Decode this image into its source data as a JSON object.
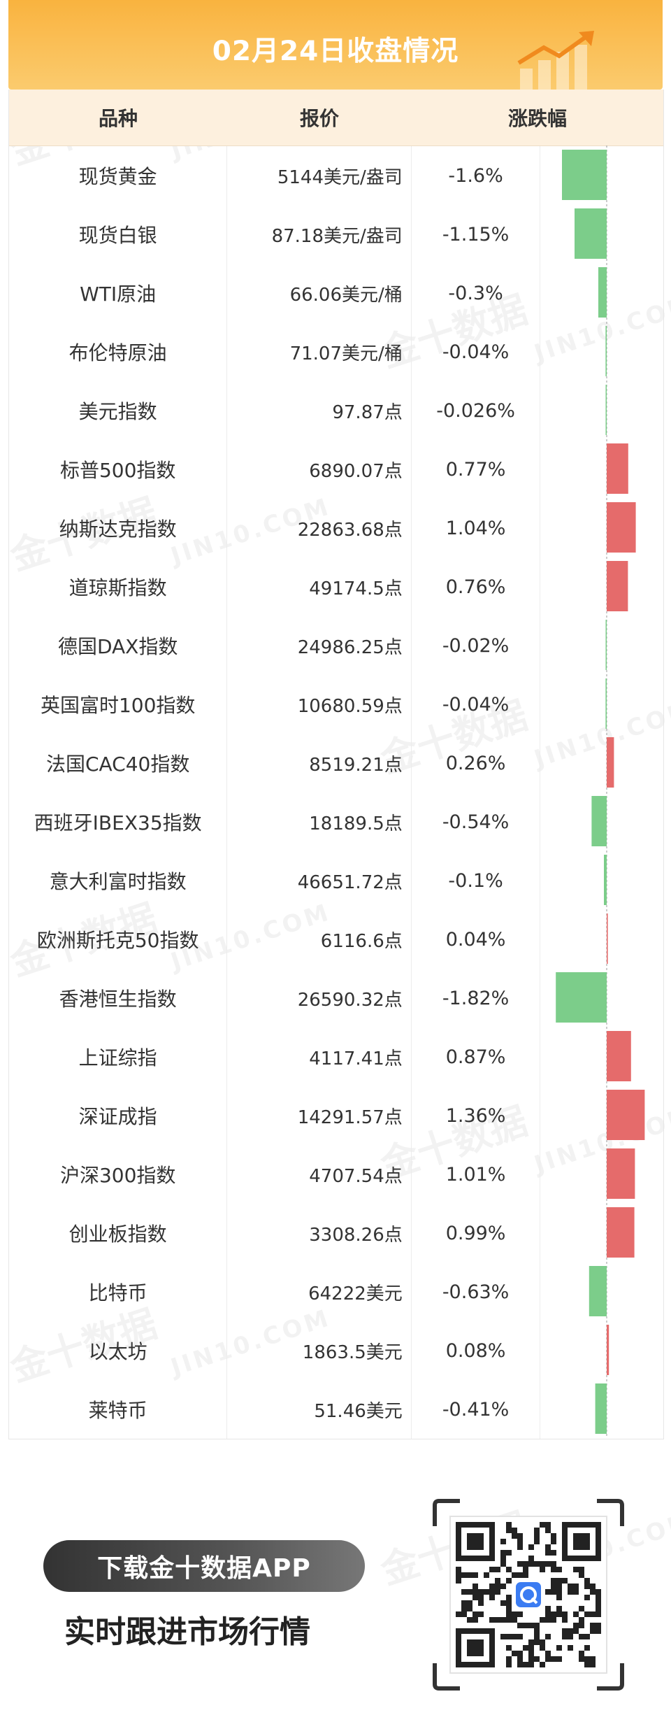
{
  "header": {
    "title": "02月24日收盘情况"
  },
  "watermark": {
    "cn": "金十数据",
    "en": "JIN10.COM"
  },
  "table": {
    "columns": [
      "品种",
      "报价",
      "涨跌幅"
    ],
    "rows": [
      {
        "name": "现货黄金",
        "price": "5144美元/盎司",
        "change": "-1.6%"
      },
      {
        "name": "现货白银",
        "price": "87.18美元/盎司",
        "change": "-1.15%"
      },
      {
        "name": "WTI原油",
        "price": "66.06美元/桶",
        "change": "-0.3%"
      },
      {
        "name": "布伦特原油",
        "price": "71.07美元/桶",
        "change": "-0.04%"
      },
      {
        "name": "美元指数",
        "price": "97.87点",
        "change": "-0.026%"
      },
      {
        "name": "标普500指数",
        "price": "6890.07点",
        "change": "0.77%"
      },
      {
        "name": "纳斯达克指数",
        "price": "22863.68点",
        "change": "1.04%"
      },
      {
        "name": "道琼斯指数",
        "price": "49174.5点",
        "change": "0.76%"
      },
      {
        "name": "德国DAX指数",
        "price": "24986.25点",
        "change": "-0.02%"
      },
      {
        "name": "英国富时100指数",
        "price": "10680.59点",
        "change": "-0.04%"
      },
      {
        "name": "法国CAC40指数",
        "price": "8519.21点",
        "change": "0.26%"
      },
      {
        "name": "西班牙IBEX35指数",
        "price": "18189.5点",
        "change": "-0.54%"
      },
      {
        "name": "意大利富时指数",
        "price": "46651.72点",
        "change": "-0.1%"
      },
      {
        "name": "欧洲斯托克50指数",
        "price": "6116.6点",
        "change": "0.04%"
      },
      {
        "name": "香港恒生指数",
        "price": "26590.32点",
        "change": "-1.82%"
      },
      {
        "name": "上证综指",
        "price": "4117.41点",
        "change": "0.87%"
      },
      {
        "name": "深证成指",
        "price": "14291.57点",
        "change": "1.36%"
      },
      {
        "name": "沪深300指数",
        "price": "4707.54点",
        "change": "1.01%"
      },
      {
        "name": "创业板指数",
        "price": "3308.26点",
        "change": "0.99%"
      },
      {
        "name": "比特币",
        "price": "64222美元",
        "change": "-0.63%"
      },
      {
        "name": "以太坊",
        "price": "1863.5美元",
        "change": "0.08%"
      },
      {
        "name": "莱特币",
        "price": "51.46美元",
        "change": "-0.41%"
      }
    ]
  },
  "chart_data": {
    "type": "bar",
    "categories": [
      "现货黄金",
      "现货白银",
      "WTI原油",
      "布伦特原油",
      "美元指数",
      "标普500指数",
      "纳斯达克指数",
      "道琼斯指数",
      "德国DAX指数",
      "英国富时100指数",
      "法国CAC40指数",
      "西班牙IBEX35指数",
      "意大利富时指数",
      "欧洲斯托克50指数",
      "香港恒生指数",
      "上证综指",
      "深证成指",
      "沪深300指数",
      "创业板指数",
      "比特币",
      "以太坊",
      "莱特币"
    ],
    "values": [
      -1.6,
      -1.15,
      -0.3,
      -0.04,
      -0.026,
      0.77,
      1.04,
      0.76,
      -0.02,
      -0.04,
      0.26,
      -0.54,
      -0.1,
      0.04,
      -1.82,
      0.87,
      1.36,
      1.01,
      0.99,
      -0.63,
      0.08,
      -0.41
    ],
    "orientation": "horizontal",
    "colors": {
      "up": "#e56b6b",
      "down": "#7ccd8a",
      "baseline": "#9a9a9a"
    }
  },
  "footer": {
    "download_label": "下载金十数据APP",
    "slogan": "实时跟进市场行情",
    "qr_icon": "qr-code-icon",
    "app_icon": "app-logo-icon"
  }
}
